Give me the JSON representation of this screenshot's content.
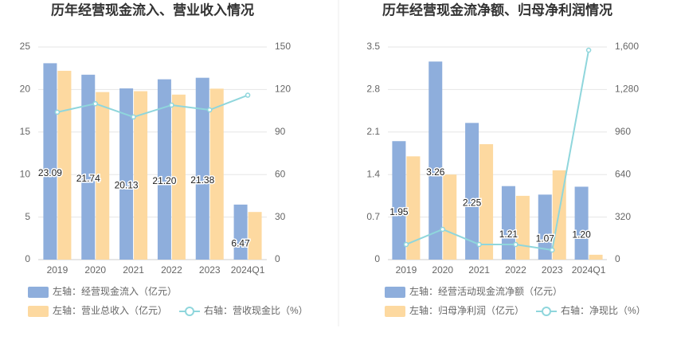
{
  "chart_data": [
    {
      "type": "bar",
      "title": "历年经营现金流入、营业收入情况",
      "categories": [
        "2019",
        "2020",
        "2021",
        "2022",
        "2023",
        "2024Q1"
      ],
      "ylim": [
        0,
        25
      ],
      "yticks": [
        0,
        5,
        10,
        15,
        20,
        25
      ],
      "y2lim": [
        0,
        150
      ],
      "y2ticks": [
        0,
        30,
        60,
        90,
        120,
        150
      ],
      "grid": true,
      "series": [
        {
          "name": "左轴：经营现金流入（亿元）",
          "color": "#8eaedc",
          "values": [
            23.09,
            21.74,
            20.13,
            21.2,
            21.38,
            6.47
          ],
          "value_labels": [
            "23.09",
            "21.74",
            "20.13",
            "21.20",
            "21.38",
            "6.47"
          ]
        },
        {
          "name": "左轴：营业总收入（亿元）",
          "color": "#fdd9a0",
          "values": [
            22.2,
            19.7,
            19.8,
            19.4,
            20.1,
            5.6
          ]
        },
        {
          "name": "右轴：营收现金比（%）",
          "color": "#8fd6dc",
          "type": "line",
          "axis": "y2",
          "values": [
            104,
            110,
            100.6,
            109,
            105.6,
            116
          ]
        }
      ]
    },
    {
      "type": "bar",
      "title": "历年经营现金流净额、归母净利润情况",
      "categories": [
        "2019",
        "2020",
        "2021",
        "2022",
        "2023",
        "2024Q1"
      ],
      "ylim": [
        0,
        3.5
      ],
      "yticks": [
        0,
        0.7,
        1.4,
        2.1,
        2.8,
        3.5
      ],
      "y2lim": [
        0,
        1600
      ],
      "y2ticks": [
        0,
        320,
        640,
        960,
        {
          "value": 1280,
          "label": "1,280"
        },
        {
          "value": 1600,
          "label": "1,600"
        }
      ],
      "grid": true,
      "series": [
        {
          "name": "左轴：经营活动现金流净额（亿元）",
          "color": "#8eaedc",
          "values": [
            1.95,
            3.26,
            2.25,
            1.21,
            1.07,
            1.2
          ],
          "value_labels": [
            "1.95",
            "3.26",
            "2.25",
            "1.21",
            "1.07",
            "1.20"
          ]
        },
        {
          "name": "左轴：归母净利润（亿元）",
          "color": "#fdd9a0",
          "values": [
            1.7,
            1.4,
            1.9,
            1.05,
            1.47,
            0.08
          ]
        },
        {
          "name": "右轴：净现比（%）",
          "color": "#8fd6dc",
          "type": "line",
          "axis": "y2",
          "values": [
            114,
            228,
            114,
            114,
            72,
            1576
          ]
        }
      ]
    }
  ]
}
